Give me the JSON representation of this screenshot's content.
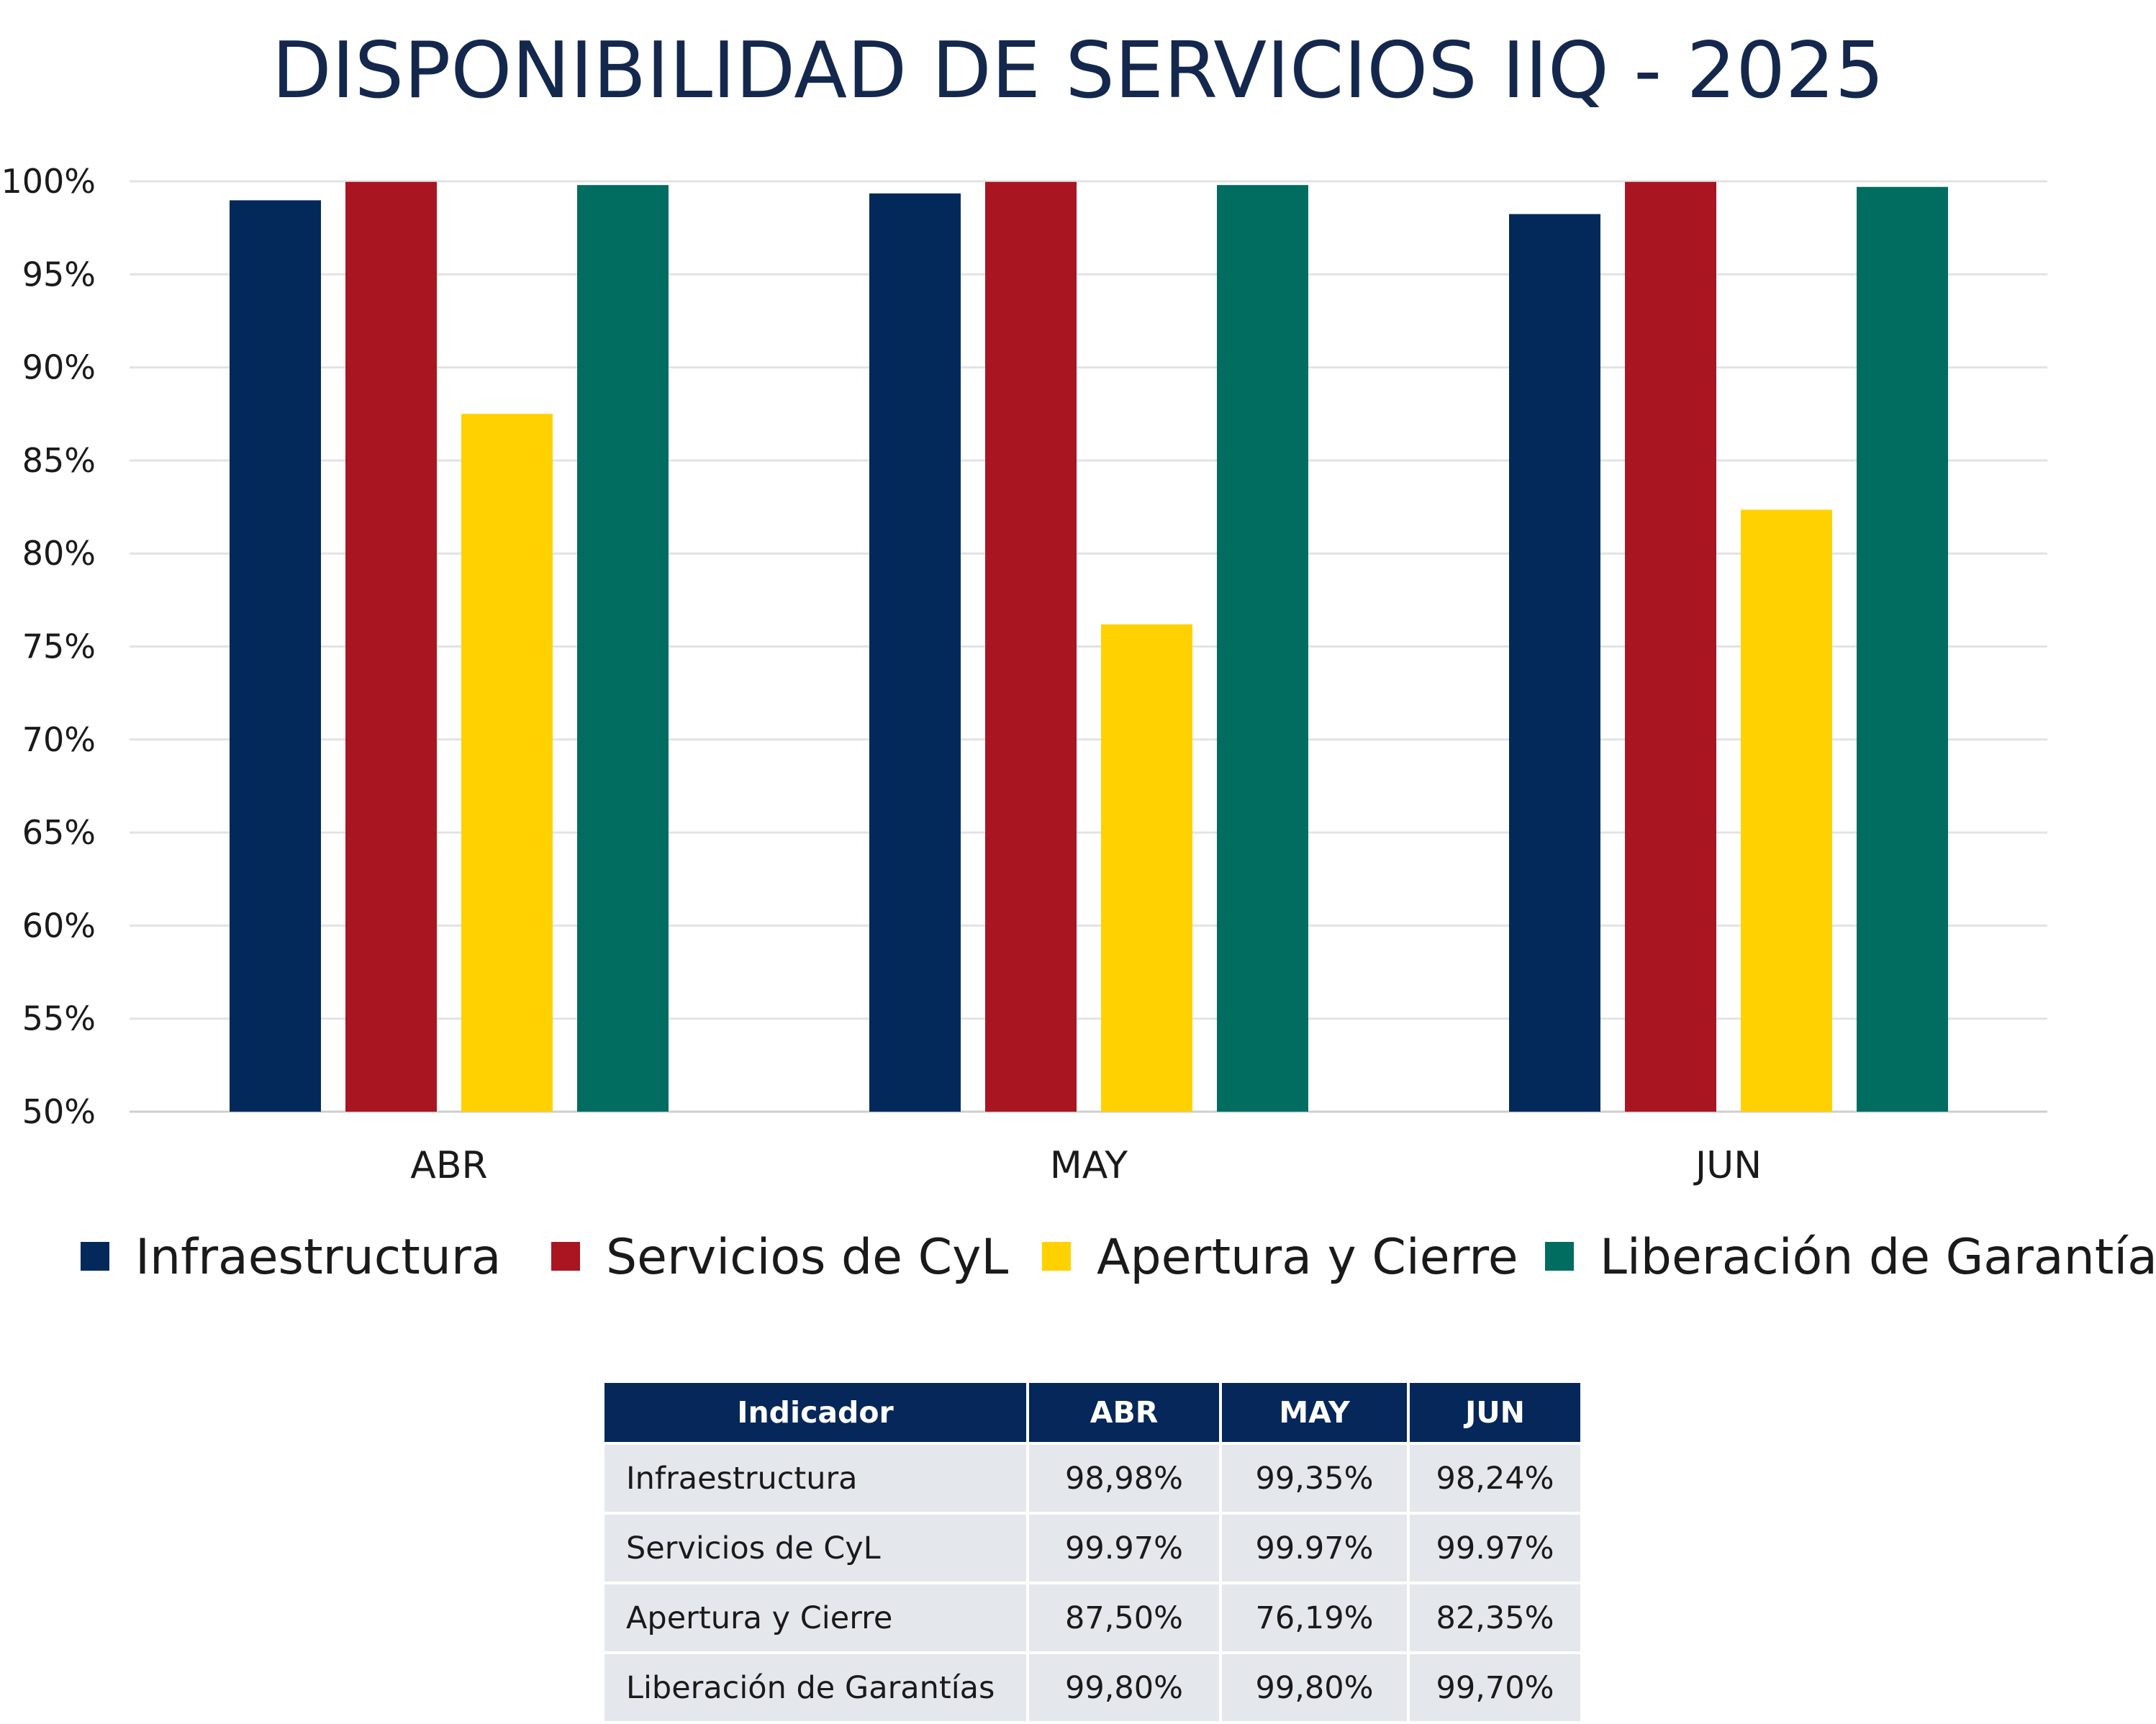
{
  "chart_data": {
    "type": "bar",
    "title": "DISPONIBILIDAD DE SERVICIOS IIQ - 2025",
    "categories": [
      "ABR",
      "MAY",
      "JUN"
    ],
    "series": [
      {
        "name": "Infraestructura",
        "color": "#03295a",
        "values": [
          98.98,
          99.35,
          98.24
        ]
      },
      {
        "name": "Servicios de CyL",
        "color": "#aa1522",
        "values": [
          99.97,
          99.97,
          99.97
        ]
      },
      {
        "name": "Apertura y Cierre",
        "color": "#ffd100",
        "values": [
          87.5,
          76.19,
          82.35
        ]
      },
      {
        "name": "Liberación de Garantías",
        "color": "#016d60",
        "values": [
          99.8,
          99.8,
          99.7
        ]
      }
    ],
    "ylim": [
      50,
      100
    ],
    "yticks": [
      "100%",
      "95%",
      "90%",
      "85%",
      "80%",
      "75%",
      "70%",
      "65%",
      "60%",
      "55%",
      "50%"
    ],
    "grid": true,
    "legend": "bottom",
    "xlabel": "",
    "ylabel": ""
  },
  "table": {
    "headers": [
      "Indicador",
      "ABR",
      "MAY",
      "JUN"
    ],
    "rows": [
      [
        "Infraestructura",
        "98,98%",
        "99,35%",
        "98,24%"
      ],
      [
        "Servicios de CyL",
        "99.97%",
        "99.97%",
        "99.97%"
      ],
      [
        "Apertura y Cierre",
        "87,50%",
        "76,19%",
        "82,35%"
      ],
      [
        "Liberación de Garantías",
        "99,80%",
        "99,80%",
        "99,70%"
      ]
    ]
  }
}
